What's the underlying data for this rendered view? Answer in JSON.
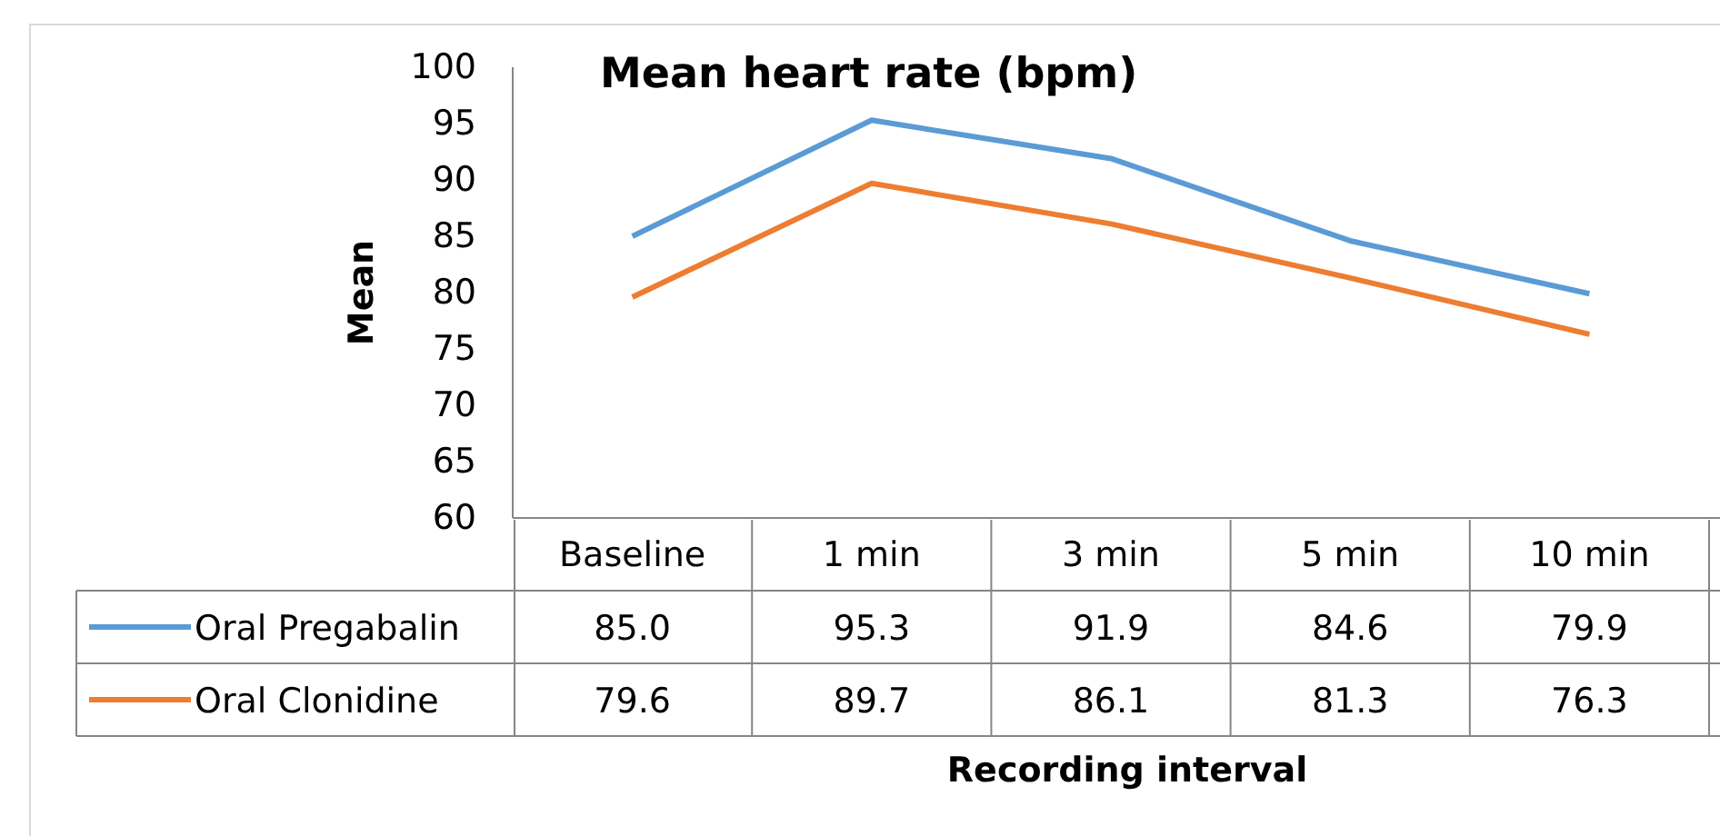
{
  "chart_data": {
    "type": "line",
    "title": "Mean heart rate (bpm)",
    "annotations": [
      "Recording interval"
    ],
    "ylabel": "Mean",
    "categories": [
      "Baseline",
      "1 min",
      "3 min",
      "5 min",
      "10 min"
    ],
    "series": [
      {
        "name": "Oral Pregabalin",
        "color": "#5b9bd5",
        "values": [
          85.0,
          95.3,
          91.9,
          84.6,
          79.9
        ],
        "value_labels": [
          "85.0",
          "95.3",
          "91.9",
          "84.6",
          "79.9"
        ]
      },
      {
        "name": "Oral Clonidine",
        "color": "#ed7d31",
        "values": [
          79.6,
          89.7,
          86.1,
          81.3,
          76.3
        ],
        "value_labels": [
          "79.6",
          "89.7",
          "86.1",
          "81.3",
          "76.3"
        ]
      }
    ],
    "ylim": [
      60,
      100
    ],
    "yticks": [
      60,
      65,
      70,
      75,
      80,
      85,
      90,
      95,
      100
    ],
    "grid": false,
    "legend": "bottom",
    "marker": "none",
    "line_style": "solid"
  }
}
